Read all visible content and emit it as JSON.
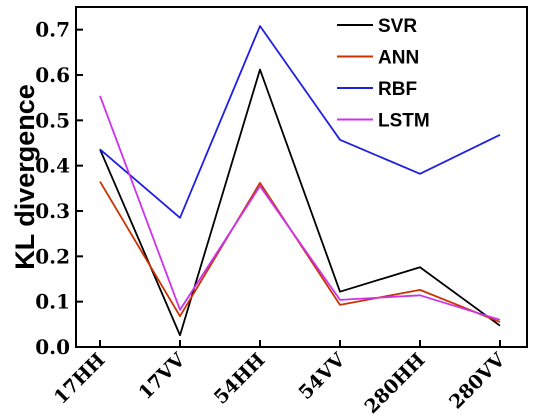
{
  "chart_data": {
    "type": "line",
    "ylabel": "KL divergence",
    "xlabel": "",
    "categories": [
      "17HH",
      "17VV",
      "54HH",
      "54VV",
      "280HH",
      "280VV"
    ],
    "ylim": [
      0,
      0.75
    ],
    "yticks": [
      "0.0",
      "0.1",
      "0.2",
      "0.3",
      "0.4",
      "0.5",
      "0.6",
      "0.7"
    ],
    "legend_position": "top-right",
    "series": [
      {
        "name": "SVR",
        "color": "#000000",
        "values": [
          0.436,
          0.026,
          0.612,
          0.122,
          0.176,
          0.047
        ]
      },
      {
        "name": "ANN",
        "color": "#cc3300",
        "values": [
          0.365,
          0.068,
          0.362,
          0.093,
          0.126,
          0.055
        ]
      },
      {
        "name": "RBF",
        "color": "#1f1fdf",
        "values": [
          0.436,
          0.285,
          0.708,
          0.457,
          0.382,
          0.468
        ]
      },
      {
        "name": "LSTM",
        "color": "#cc33ee",
        "values": [
          0.554,
          0.082,
          0.355,
          0.104,
          0.114,
          0.06
        ]
      }
    ]
  }
}
